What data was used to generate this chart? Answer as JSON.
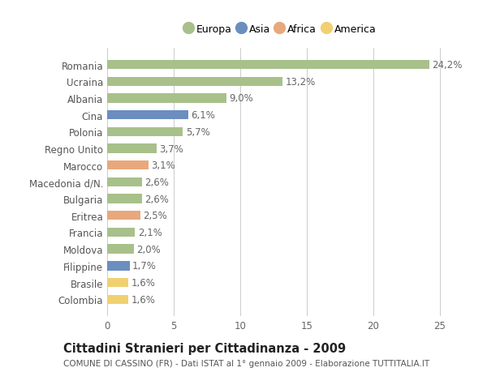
{
  "countries": [
    "Romania",
    "Ucraina",
    "Albania",
    "Cina",
    "Polonia",
    "Regno Unito",
    "Marocco",
    "Macedonia d/N.",
    "Bulgaria",
    "Eritrea",
    "Francia",
    "Moldova",
    "Filippine",
    "Brasile",
    "Colombia"
  ],
  "values": [
    24.2,
    13.2,
    9.0,
    6.1,
    5.7,
    3.7,
    3.1,
    2.6,
    2.6,
    2.5,
    2.1,
    2.0,
    1.7,
    1.6,
    1.6
  ],
  "labels": [
    "24,2%",
    "13,2%",
    "9,0%",
    "6,1%",
    "5,7%",
    "3,7%",
    "3,1%",
    "2,6%",
    "2,6%",
    "2,5%",
    "2,1%",
    "2,0%",
    "1,7%",
    "1,6%",
    "1,6%"
  ],
  "continents": [
    "Europa",
    "Europa",
    "Europa",
    "Asia",
    "Europa",
    "Europa",
    "Africa",
    "Europa",
    "Europa",
    "Africa",
    "Europa",
    "Europa",
    "Asia",
    "America",
    "America"
  ],
  "colors": {
    "Europa": "#a8c08a",
    "Asia": "#6b8ebf",
    "Africa": "#e8a87c",
    "America": "#f0d070"
  },
  "legend_order": [
    "Europa",
    "Asia",
    "Africa",
    "America"
  ],
  "legend_colors": [
    "#a8c08a",
    "#6b8ebf",
    "#e8a87c",
    "#f0d070"
  ],
  "xlim": [
    0,
    26
  ],
  "xticks": [
    0,
    5,
    10,
    15,
    20,
    25
  ],
  "title": "Cittadini Stranieri per Cittadinanza - 2009",
  "subtitle": "COMUNE DI CASSINO (FR) - Dati ISTAT al 1° gennaio 2009 - Elaborazione TUTTITALIA.IT",
  "background_color": "#ffffff",
  "grid_color": "#cccccc",
  "bar_height": 0.55,
  "label_fontsize": 8.5,
  "tick_fontsize": 8.5,
  "title_fontsize": 10.5
}
